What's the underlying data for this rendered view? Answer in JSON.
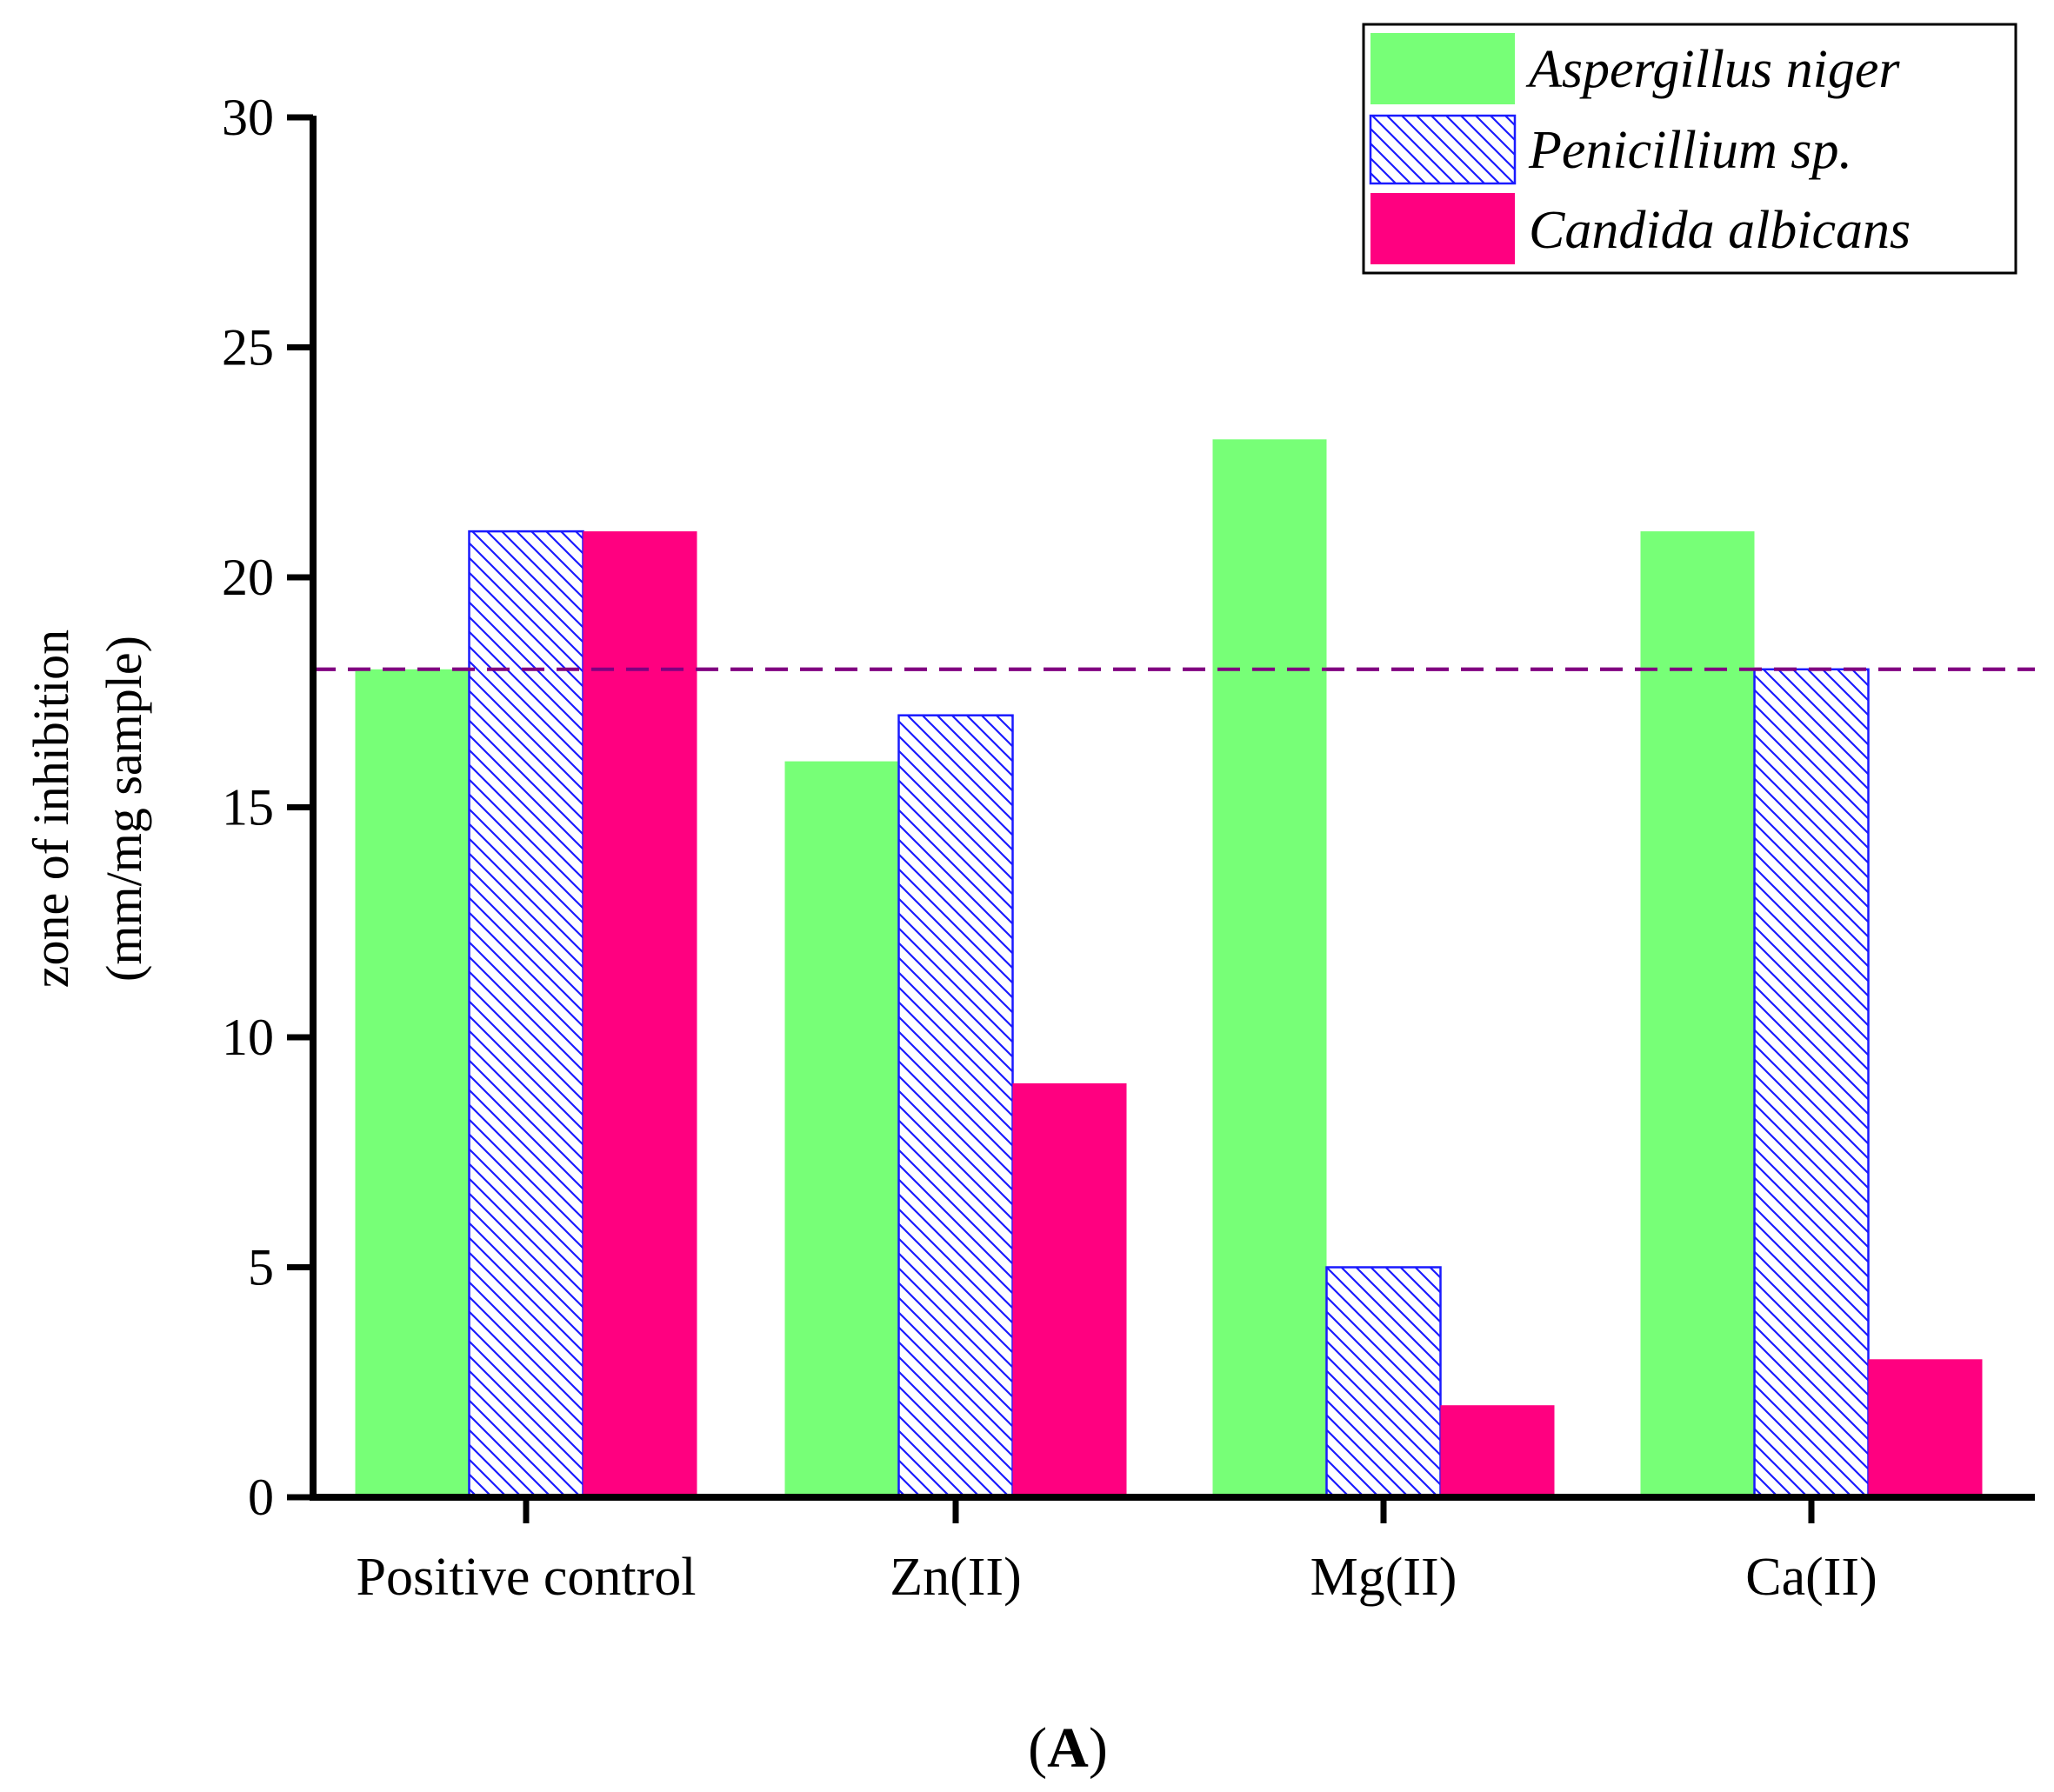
{
  "chart_data": {
    "type": "bar",
    "categories": [
      "Positive control",
      "Zn(II)",
      "Mg(II)",
      "Ca(II)"
    ],
    "series": [
      {
        "name": "Aspergillus niger",
        "values": [
          18,
          16,
          23,
          21
        ],
        "color": "#77ff77",
        "pattern": "solid"
      },
      {
        "name": "Penicillium sp.",
        "values": [
          21,
          17,
          5,
          18
        ],
        "color": "#1a1aff",
        "pattern": "hatch"
      },
      {
        "name": "Candida albicans",
        "values": [
          21,
          9,
          2,
          3
        ],
        "color": "#ff0080",
        "pattern": "solid"
      }
    ],
    "ylabel_line1": "zone of inhibition",
    "ylabel_line2": "(mm/mg sample)",
    "xlabel": "",
    "ylim": [
      0,
      30
    ],
    "yticks": [
      0,
      5,
      10,
      15,
      20,
      25,
      30
    ],
    "reference_line": {
      "value": 18,
      "color": "#800080",
      "style": "dashed"
    },
    "legend_position": "top-right",
    "grid": false,
    "panel_label": {
      "open": "(",
      "letter": "A",
      "close": ")"
    }
  }
}
